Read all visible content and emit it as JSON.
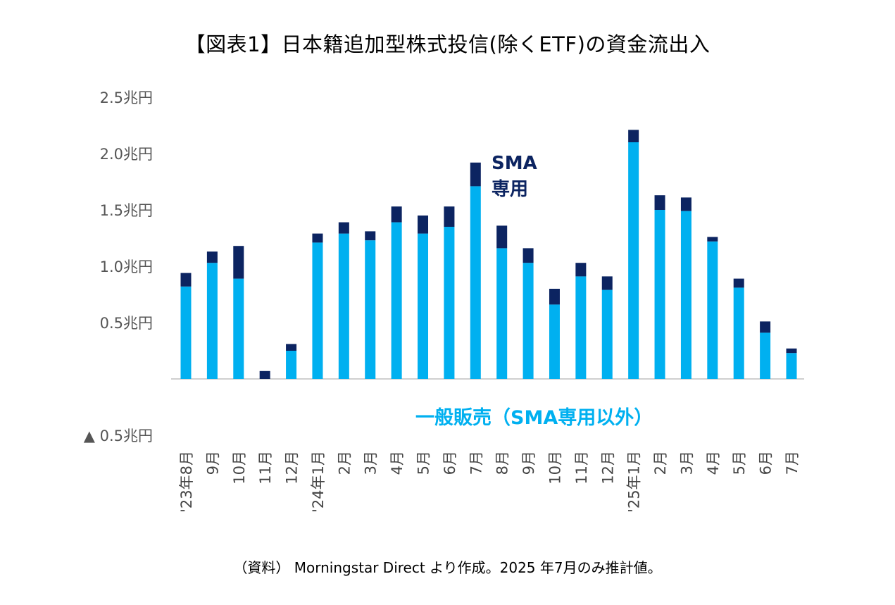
{
  "title": "【図表1】日本籍追加型株式投信(除くETF)の資金流出入",
  "note": "（資料） Morningstar Direct より作成。2025 年7月のみ推計値。",
  "chart_data": {
    "type": "bar",
    "stacked": true,
    "title": "【図表1】日本籍追加型株式投信(除くETF)の資金流出入",
    "ylim": [
      -0.5,
      2.5
    ],
    "yticks": [
      2.5,
      2.0,
      1.5,
      1.0,
      0.5,
      -0.5
    ],
    "ytick_labels": [
      "2.5兆円",
      "2.0兆円",
      "1.5兆円",
      "1.0兆円",
      "0.5兆円",
      "▲ 0.5兆円"
    ],
    "grid": false,
    "categories": [
      "'23年8月",
      "9月",
      "10月",
      "11月",
      "12月",
      "'24年1月",
      "2月",
      "3月",
      "4月",
      "5月",
      "6月",
      "7月",
      "8月",
      "9月",
      "10月",
      "11月",
      "12月",
      "'25年1月",
      "2月",
      "3月",
      "4月",
      "5月",
      "6月",
      "7月"
    ],
    "series": [
      {
        "name": "一般販売（SMA専用以外）",
        "color": "#00b0f0",
        "values": [
          0.82,
          1.03,
          0.89,
          0.0,
          0.25,
          1.21,
          1.29,
          1.23,
          1.39,
          1.29,
          1.35,
          1.71,
          1.16,
          1.03,
          0.66,
          0.91,
          0.79,
          2.1,
          1.5,
          1.49,
          1.22,
          0.81,
          0.41,
          0.23
        ]
      },
      {
        "name": "SMA専用",
        "color": "#0c2461",
        "values": [
          0.12,
          0.1,
          0.29,
          0.07,
          0.06,
          0.08,
          0.1,
          0.08,
          0.14,
          0.16,
          0.18,
          0.21,
          0.2,
          0.13,
          0.14,
          0.12,
          0.12,
          0.11,
          0.13,
          0.12,
          0.04,
          0.08,
          0.1,
          0.04
        ]
      }
    ],
    "annotations": [
      {
        "text": "SMA\n専用",
        "series": "SMA専用"
      },
      {
        "text": "一般販売（SMA専用以外）",
        "series": "一般販売（SMA専用以外）"
      }
    ]
  }
}
